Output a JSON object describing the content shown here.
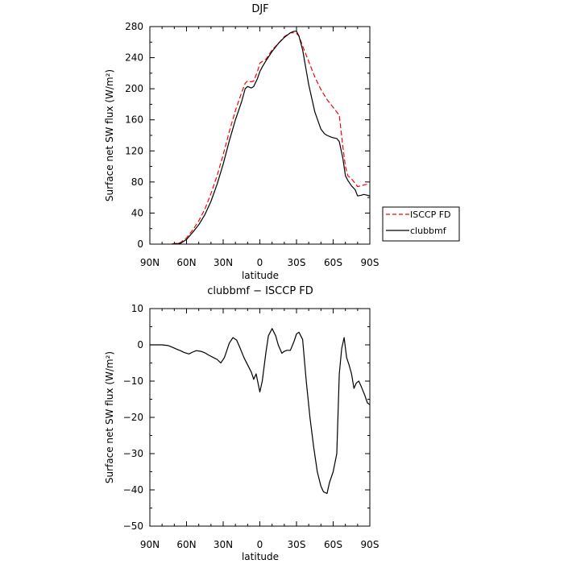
{
  "chart_data": [
    {
      "type": "line",
      "title": "DJF",
      "xlabel": "latitude",
      "ylabel": "Surface net SW flux (W/m²)",
      "x_direction": "north-to-south",
      "x_ticks": [
        "90N",
        "60N",
        "30N",
        "0",
        "30S",
        "60S",
        "90S"
      ],
      "y_ticks": [
        "0",
        "40",
        "80",
        "120",
        "160",
        "200",
        "240",
        "280"
      ],
      "xlim": [
        -90,
        90
      ],
      "ylim": [
        0,
        280
      ],
      "grid": false,
      "legend_position": "right",
      "series": [
        {
          "name": "ISCCP FD",
          "color": "#ff0000",
          "dash": "dashed",
          "x": [
            -72,
            -65,
            -60,
            -55,
            -50,
            -45,
            -40,
            -35,
            -30,
            -25,
            -20,
            -15,
            -12,
            -10,
            -7,
            -5,
            -2,
            0,
            2,
            5,
            10,
            15,
            20,
            25,
            28,
            30,
            32,
            35,
            40,
            45,
            50,
            55,
            60,
            65,
            68,
            70,
            72,
            75,
            80,
            85,
            90
          ],
          "y": [
            0,
            2,
            8,
            18,
            30,
            45,
            65,
            88,
            115,
            145,
            172,
            195,
            207,
            210,
            209,
            210,
            222,
            233,
            235,
            238,
            250,
            258,
            267,
            272,
            272,
            271,
            268,
            255,
            235,
            215,
            199,
            186,
            176,
            166,
            125,
            100,
            88,
            84,
            74,
            76,
            78
          ]
        },
        {
          "name": "clubbmf",
          "color": "#000000",
          "dash": "solid",
          "x": [
            -72,
            -65,
            -60,
            -55,
            -50,
            -45,
            -40,
            -35,
            -30,
            -25,
            -20,
            -15,
            -12,
            -10,
            -7,
            -5,
            -2,
            0,
            2,
            5,
            10,
            15,
            20,
            25,
            28,
            30,
            32,
            35,
            40,
            45,
            50,
            53,
            55,
            58,
            60,
            63,
            65,
            68,
            70,
            72,
            75,
            78,
            80,
            83,
            85,
            88,
            90
          ],
          "y": [
            0,
            1,
            6,
            15,
            25,
            38,
            55,
            77,
            103,
            133,
            160,
            183,
            200,
            203,
            201,
            203,
            213,
            222,
            228,
            236,
            248,
            258,
            266,
            272,
            274,
            274,
            268,
            250,
            205,
            170,
            148,
            142,
            140,
            138,
            137,
            136,
            132,
            110,
            88,
            82,
            75,
            70,
            62,
            63,
            64,
            63,
            62
          ]
        }
      ]
    },
    {
      "type": "line",
      "title": "clubbmf − ISCCP FD",
      "xlabel": "latitude",
      "ylabel": "Surface net SW flux (W/m²)",
      "x_direction": "north-to-south",
      "x_ticks": [
        "90N",
        "60N",
        "30N",
        "0",
        "30S",
        "60S",
        "90S"
      ],
      "y_ticks": [
        "−50",
        "−40",
        "−30",
        "−20",
        "−10",
        "0",
        "10"
      ],
      "xlim": [
        -90,
        90
      ],
      "ylim": [
        -50,
        10
      ],
      "grid": false,
      "series": [
        {
          "color": "#000000",
          "dash": "solid",
          "x": [
            -90,
            -80,
            -75,
            -72,
            -68,
            -65,
            -62,
            -58,
            -55,
            -52,
            -48,
            -45,
            -42,
            -38,
            -35,
            -32,
            -29,
            -27,
            -25,
            -22,
            -19,
            -16,
            -13,
            -10,
            -7,
            -5,
            -3,
            0,
            2,
            5,
            7,
            10,
            13,
            15,
            18,
            20,
            22,
            25,
            28,
            30,
            32,
            35,
            38,
            41,
            44,
            47,
            50,
            52,
            55,
            57,
            60,
            63,
            65,
            67,
            69,
            71,
            73,
            75,
            77,
            79,
            81,
            83,
            86,
            88,
            90
          ],
          "y": [
            0,
            0,
            -0.2,
            -0.6,
            -1.2,
            -1.6,
            -2.1,
            -2.5,
            -2.0,
            -1.6,
            -1.8,
            -2.2,
            -2.8,
            -3.5,
            -4,
            -5,
            -3.5,
            -1.5,
            0.5,
            2.0,
            1.3,
            -1.0,
            -3.5,
            -5.5,
            -7.5,
            -9.5,
            -8.0,
            -13,
            -10,
            -2.0,
            2.5,
            4.5,
            2.5,
            0,
            -2.3,
            -1.8,
            -1.5,
            -1.5,
            1,
            3,
            3.5,
            1.5,
            -10,
            -20,
            -28,
            -35,
            -39,
            -40.5,
            -41,
            -38,
            -35,
            -30,
            -8,
            -1,
            2,
            -3.5,
            -5.5,
            -8,
            -12,
            -10.5,
            -10,
            -11.5,
            -14,
            -16,
            -16.5
          ]
        }
      ]
    }
  ]
}
